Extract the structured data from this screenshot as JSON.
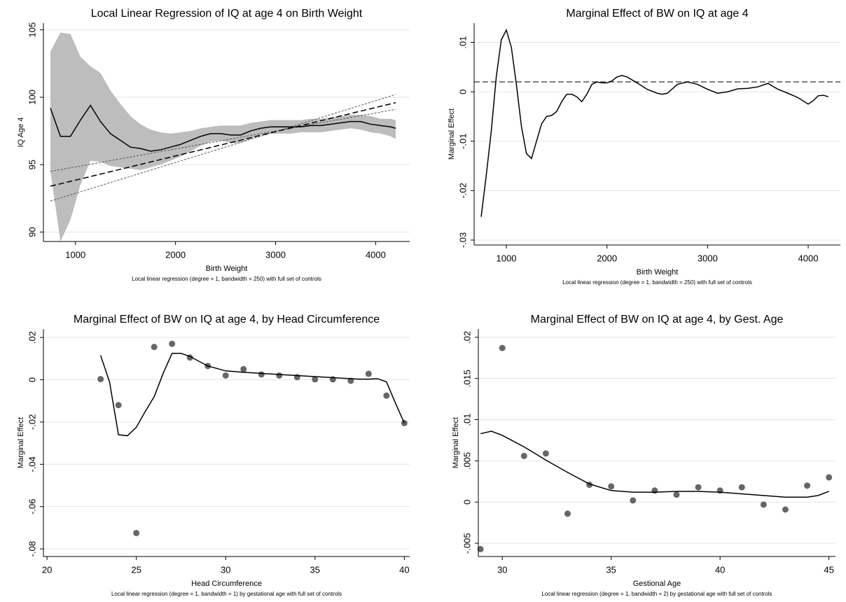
{
  "chart_data": [
    {
      "type": "line",
      "title": "Local Linear Regression of IQ at age 4 on Birth Weight",
      "x_label": "Birth Weight",
      "y_label": "IQ Age 4",
      "note": "Local linear regression (degree = 1, bandwidth = 250) with full set of controls",
      "xlim": [
        680,
        4340
      ],
      "ylim": [
        89.3,
        105.5
      ],
      "xticks": [
        1000,
        2000,
        3000,
        4000
      ],
      "yticks": [
        90,
        95,
        100,
        105
      ],
      "grid": true,
      "band": {
        "color": "#bdbdbd",
        "x": [
          750,
          850,
          950,
          1050,
          1150,
          1250,
          1350,
          1450,
          1550,
          1650,
          1750,
          1850,
          1950,
          2050,
          2150,
          2250,
          2350,
          2450,
          2550,
          2650,
          2750,
          2850,
          2950,
          3050,
          3150,
          3250,
          3350,
          3450,
          3550,
          3650,
          3750,
          3850,
          3950,
          4050,
          4150,
          4200
        ],
        "upper": [
          103.4,
          104.8,
          104.7,
          103.0,
          102.3,
          101.8,
          100.5,
          99.5,
          98.6,
          98.0,
          97.6,
          97.4,
          97.3,
          97.4,
          97.5,
          97.7,
          97.8,
          97.9,
          97.9,
          97.9,
          98.1,
          98.2,
          98.3,
          98.3,
          98.3,
          98.3,
          98.4,
          98.4,
          98.5,
          98.6,
          98.7,
          98.7,
          98.6,
          98.4,
          98.4,
          98.3
        ],
        "lower": [
          94.5,
          89.3,
          90.9,
          93.5,
          95.3,
          95.2,
          94.9,
          94.8,
          94.7,
          94.6,
          94.8,
          95.0,
          95.3,
          95.6,
          96.0,
          96.4,
          96.7,
          96.8,
          96.6,
          96.6,
          96.9,
          97.2,
          97.3,
          97.3,
          97.3,
          97.4,
          97.4,
          97.4,
          97.5,
          97.6,
          97.7,
          97.6,
          97.4,
          97.3,
          97.1,
          96.9
        ]
      },
      "series": [
        {
          "color": "#555555",
          "style": "dotted",
          "x": [
            750,
            4200
          ],
          "values": [
            94.5,
            99.1
          ]
        },
        {
          "color": "#555555",
          "style": "dotted",
          "x": [
            750,
            4200
          ],
          "values": [
            92.3,
            100.2
          ]
        },
        {
          "color": "#000000",
          "style": "dashed",
          "x": [
            750,
            4200
          ],
          "values": [
            93.4,
            99.6
          ]
        },
        {
          "color": "#000000",
          "style": "solid",
          "x": [
            750,
            850,
            950,
            1050,
            1150,
            1250,
            1350,
            1450,
            1550,
            1650,
            1750,
            1850,
            1950,
            2050,
            2150,
            2250,
            2350,
            2450,
            2550,
            2650,
            2750,
            2850,
            2950,
            3050,
            3150,
            3250,
            3350,
            3450,
            3550,
            3650,
            3750,
            3850,
            3950,
            4050,
            4150,
            4200
          ],
          "values": [
            99.2,
            97.1,
            97.1,
            98.3,
            99.4,
            98.2,
            97.3,
            96.8,
            96.3,
            96.2,
            96.0,
            96.1,
            96.3,
            96.5,
            96.8,
            97.1,
            97.3,
            97.3,
            97.2,
            97.2,
            97.5,
            97.7,
            97.8,
            97.8,
            97.8,
            97.8,
            97.9,
            97.9,
            98.0,
            98.1,
            98.2,
            98.2,
            98.0,
            97.9,
            97.8,
            97.7
          ]
        }
      ]
    },
    {
      "type": "line",
      "title": "Marginal Effect of BW on IQ at age 4",
      "x_label": "Birth Weight",
      "y_label": "Marginal Effect",
      "note": "Local linear regression (degree = 1, bandwidth = 250) with full set of controls",
      "xlim": [
        680,
        4320
      ],
      "ylim": [
        -0.031,
        0.0139
      ],
      "xticks": [
        1000,
        2000,
        3000,
        4000
      ],
      "yticks": [
        {
          "value": 0.01,
          "label": ".01"
        },
        0,
        {
          "value": -0.01,
          "label": "-.01"
        },
        {
          "value": -0.02,
          "label": "-.02"
        },
        {
          "value": -0.03,
          "label": "-.03"
        }
      ],
      "grid": true,
      "reference_line": {
        "value": 0.002,
        "color": "#555555",
        "style": "dashed"
      },
      "series": [
        {
          "color": "#000000",
          "style": "solid",
          "x": [
            750,
            800,
            850,
            900,
            950,
            1000,
            1050,
            1100,
            1150,
            1200,
            1250,
            1300,
            1350,
            1400,
            1450,
            1500,
            1550,
            1600,
            1650,
            1700,
            1750,
            1800,
            1850,
            1900,
            1950,
            2000,
            2050,
            2100,
            2150,
            2200,
            2300,
            2400,
            2500,
            2550,
            2600,
            2700,
            2800,
            2900,
            3000,
            3100,
            3200,
            3300,
            3400,
            3500,
            3600,
            3700,
            3800,
            3900,
            4000,
            4050,
            4100,
            4150,
            4200
          ],
          "values": [
            -0.0253,
            -0.017,
            -0.008,
            0.003,
            0.0105,
            0.0125,
            0.009,
            0.0015,
            -0.007,
            -0.0125,
            -0.0135,
            -0.01,
            -0.0065,
            -0.005,
            -0.0048,
            -0.004,
            -0.002,
            -0.0005,
            -0.0005,
            -0.001,
            -0.002,
            -0.0005,
            0.0015,
            0.002,
            0.0018,
            0.0018,
            0.0022,
            0.003,
            0.0033,
            0.003,
            0.0018,
            0.0005,
            -0.0003,
            -0.0005,
            -0.0003,
            0.0015,
            0.002,
            0.0015,
            0.0005,
            -0.0003,
            0.0,
            0.0006,
            0.0007,
            0.001,
            0.0017,
            0.0005,
            -0.0003,
            -0.0012,
            -0.0025,
            -0.0018,
            -0.0008,
            -0.0007,
            -0.001
          ]
        }
      ]
    },
    {
      "type": "line",
      "title": "Marginal Effect of BW on IQ at age 4, by Head Circumference",
      "x_label": "Head Circumference",
      "y_label": "Marginal Effect",
      "note": "Local linear regression (degree = 1, bandwidth = 1) by gestational age with full set of controls",
      "xlim": [
        19.8,
        40.3
      ],
      "ylim": [
        -0.0836,
        0.024
      ],
      "xticks": [
        20,
        25,
        30,
        35,
        40
      ],
      "yticks": [
        {
          "value": 0.02,
          "label": ".02"
        },
        0,
        {
          "value": -0.02,
          "label": "-.02"
        },
        {
          "value": -0.04,
          "label": "-.04"
        },
        {
          "value": -0.06,
          "label": "-.06"
        },
        {
          "value": -0.08,
          "label": "-.08"
        }
      ],
      "grid": true,
      "series": [
        {
          "color": "#666666",
          "style": "markers",
          "x": [
            23,
            24,
            25,
            26,
            27,
            28,
            29,
            30,
            31,
            32,
            33,
            34,
            35,
            36,
            37,
            38,
            39,
            40
          ],
          "values": [
            0.0003,
            -0.012,
            -0.0725,
            0.0155,
            0.017,
            0.0105,
            0.0065,
            0.002,
            0.005,
            0.0025,
            0.002,
            0.0012,
            0.0002,
            0.0002,
            -0.0005,
            0.0028,
            -0.0075,
            -0.0205
          ]
        },
        {
          "color": "#000000",
          "style": "solid",
          "x": [
            23,
            23.5,
            24,
            24.5,
            25,
            25.5,
            26,
            26.5,
            27,
            27.5,
            28,
            29,
            30,
            31,
            32,
            33,
            34,
            35,
            36,
            37,
            37.5,
            38,
            38.5,
            39,
            39.5,
            40
          ],
          "values": [
            0.0115,
            -0.001,
            -0.026,
            -0.0265,
            -0.0225,
            -0.015,
            -0.008,
            0.003,
            0.0125,
            0.0125,
            0.011,
            0.0065,
            0.0042,
            0.0035,
            0.003,
            0.0025,
            0.002,
            0.0015,
            0.001,
            0.0005,
            0.0003,
            0.0003,
            0.0005,
            -0.001,
            -0.011,
            -0.0205
          ]
        }
      ]
    },
    {
      "type": "line",
      "title": "Marginal Effect of BW on IQ at age 4, by Gest. Age",
      "x_label": "Gestional Age",
      "y_label": "Marginal Effect",
      "note": "Local linear regression (degree = 1, bandwidth = 2) by gestational age with full set of controls",
      "xlim": [
        28.9,
        45.3
      ],
      "ylim": [
        -0.0066,
        0.021
      ],
      "xticks": [
        30,
        35,
        40,
        45
      ],
      "yticks": [
        {
          "value": 0.02,
          "label": ".02"
        },
        {
          "value": 0.015,
          "label": ".015"
        },
        {
          "value": 0.01,
          "label": ".01"
        },
        {
          "value": 0.005,
          "label": ".005"
        },
        0,
        {
          "value": -0.005,
          "label": "-.005"
        }
      ],
      "grid": true,
      "series": [
        {
          "color": "#666666",
          "style": "markers",
          "x": [
            29,
            30,
            31,
            32,
            33,
            34,
            35,
            36,
            37,
            38,
            39,
            40,
            41,
            42,
            43,
            44,
            45
          ],
          "values": [
            -0.0057,
            0.0187,
            0.0056,
            0.0059,
            -0.0014,
            0.0021,
            0.0019,
            0.0002,
            0.0014,
            0.0009,
            0.0018,
            0.0014,
            0.0018,
            -0.0003,
            -0.0009,
            0.002,
            0.003
          ]
        },
        {
          "color": "#000000",
          "style": "solid",
          "x": [
            29,
            29.5,
            30,
            31,
            32,
            33,
            34,
            35,
            36,
            37,
            38,
            39,
            40,
            41,
            42,
            43,
            44,
            44.5,
            45
          ],
          "values": [
            0.0083,
            0.0086,
            0.0081,
            0.0067,
            0.0051,
            0.0036,
            0.0022,
            0.0014,
            0.0012,
            0.0012,
            0.0013,
            0.0013,
            0.0012,
            0.001,
            0.0008,
            0.0006,
            0.0006,
            0.0008,
            0.0013
          ]
        }
      ]
    }
  ]
}
